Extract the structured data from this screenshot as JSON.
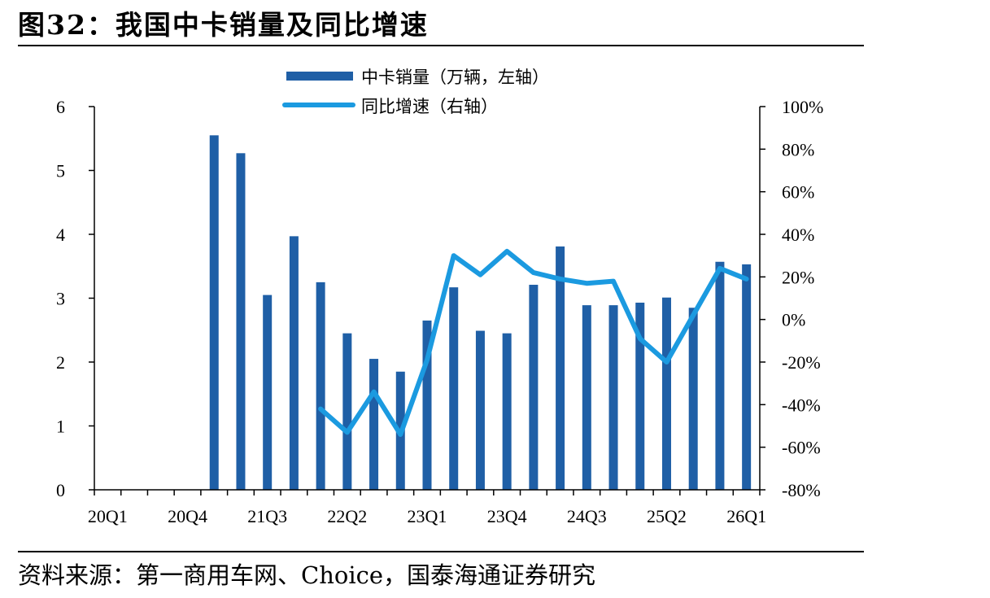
{
  "figure": {
    "title": "图32：我国中卡销量及同比增速",
    "source": "资料来源：第一商用车网、Choice，国泰海通证券研究"
  },
  "chart_data": {
    "type": "bar",
    "categories": [
      "20Q1",
      "20Q2",
      "20Q3",
      "20Q4",
      "21Q1",
      "21Q2",
      "21Q3",
      "21Q4",
      "22Q1",
      "22Q2",
      "22Q3",
      "22Q4",
      "23Q1",
      "23Q2",
      "23Q3",
      "23Q4",
      "24Q1",
      "24Q2",
      "24Q3",
      "24Q4",
      "25Q1",
      "25Q2",
      "25Q3",
      "25Q4",
      "26Q1"
    ],
    "x_tick_labels": [
      "20Q1",
      "20Q4",
      "21Q3",
      "22Q2",
      "23Q1",
      "23Q4",
      "24Q3",
      "25Q2",
      "26Q1"
    ],
    "series": [
      {
        "name": "中卡销量（万辆，左轴）",
        "type": "bar",
        "axis": "left",
        "color": "#1f5fa6",
        "values": [
          null,
          null,
          null,
          null,
          5.55,
          5.27,
          3.05,
          3.97,
          3.25,
          2.45,
          2.05,
          1.85,
          2.65,
          3.17,
          2.49,
          2.45,
          3.21,
          3.81,
          2.89,
          2.89,
          2.93,
          3.01,
          2.85,
          3.57,
          3.53
        ]
      },
      {
        "name": "同比增速（右轴）",
        "type": "line",
        "axis": "right",
        "color": "#1b9ae0",
        "values": [
          null,
          null,
          null,
          null,
          null,
          null,
          null,
          null,
          -42,
          -53,
          -34,
          -54,
          -19,
          30,
          21,
          32,
          22,
          19,
          17,
          18,
          -9,
          -20,
          2,
          24,
          19
        ]
      }
    ],
    "y_left": {
      "ticks": [
        "0",
        "1",
        "2",
        "3",
        "4",
        "5",
        "6"
      ],
      "ylim": [
        0,
        6
      ]
    },
    "y_right": {
      "ticks": [
        "100%",
        "80%",
        "60%",
        "40%",
        "20%",
        "0%",
        "-20%",
        "-40%",
        "-60%",
        "-80%"
      ],
      "ylim": [
        -80,
        100
      ]
    },
    "legend": "top-center",
    "grid": false
  }
}
